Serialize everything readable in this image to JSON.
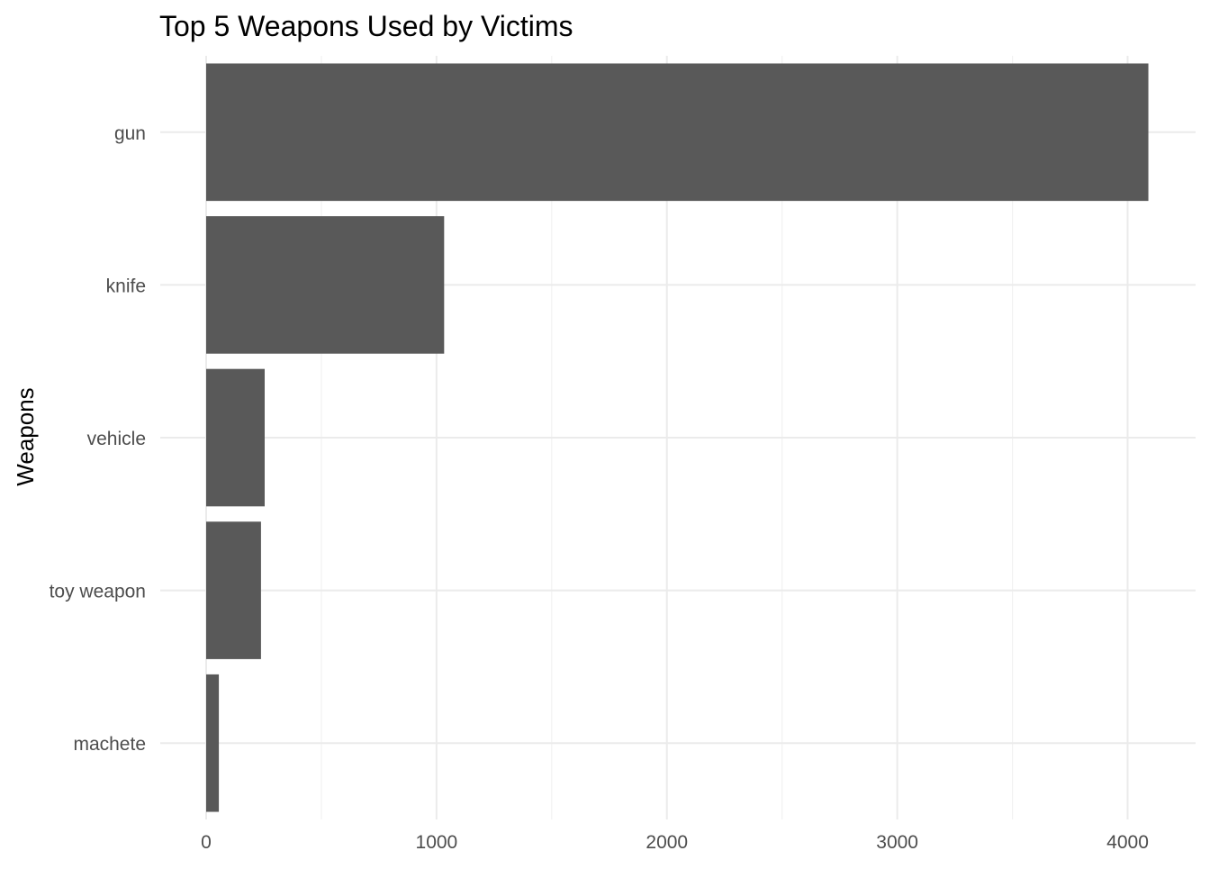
{
  "chart_data": {
    "type": "bar",
    "orientation": "horizontal",
    "title": "Top 5 Weapons Used by Victims",
    "xlabel": "",
    "ylabel": "Weapons",
    "categories": [
      "gun",
      "knife",
      "vehicle",
      "toy weapon",
      "machete"
    ],
    "values": [
      4090,
      1033,
      254,
      238,
      55
    ],
    "xlim": [
      0,
      4295
    ],
    "xticks": [
      0,
      1000,
      2000,
      3000,
      4000
    ],
    "xtick_labels": [
      "0",
      "1000",
      "2000",
      "3000",
      "4000"
    ],
    "grid": true,
    "legend": "none",
    "colors": {
      "bar": "#595959",
      "grid_major": "#ebebeb",
      "grid_minor": "#f2f2f2",
      "tick_text": "#4d4d4d",
      "title_text": "#000000"
    }
  }
}
